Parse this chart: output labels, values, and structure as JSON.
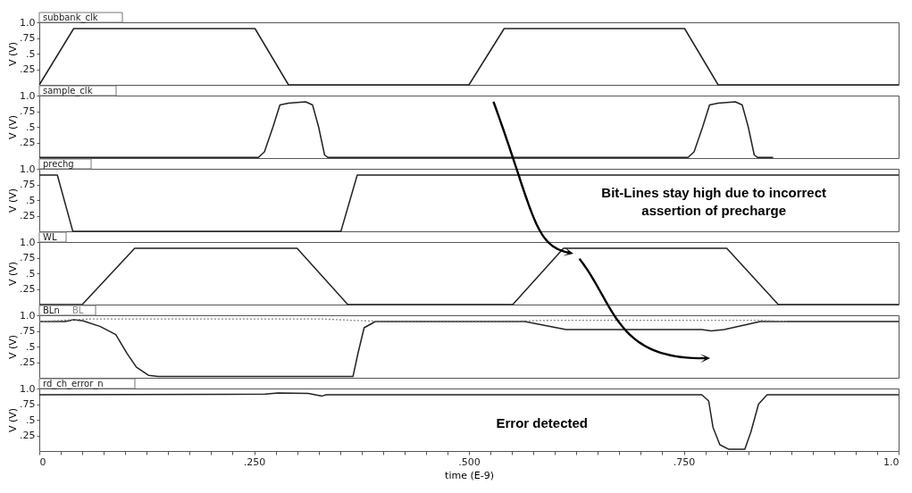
{
  "chart_data": [
    {
      "type": "line",
      "ylabel": "V (V)",
      "xlim": [
        0,
        1
      ],
      "ylim": [
        0,
        1
      ],
      "yticks": [
        {
          "value": 0.25,
          "label": ".25"
        },
        {
          "value": 0.5,
          "label": ".5"
        },
        {
          "value": 0.75,
          "label": ".75"
        },
        {
          "value": 1,
          "label": "1.0"
        }
      ],
      "tick_labels": "y",
      "series": [
        {
          "name": "subbank_clk",
          "color": "#222222",
          "x": [
            0,
            0.04,
            0.251,
            0.29,
            0.5,
            0.541,
            0.751,
            0.79,
            1.0
          ],
          "values": [
            0,
            0.9,
            0.9,
            0,
            0,
            0.9,
            0.9,
            0,
            0
          ]
        }
      ]
    },
    {
      "type": "line",
      "ylabel": "V (V)",
      "xlim": [
        0,
        1
      ],
      "ylim": [
        0,
        1
      ],
      "yticks": [
        {
          "value": 0.25,
          "label": ".25"
        },
        {
          "value": 0.5,
          "label": ".5"
        },
        {
          "value": 0.75,
          "label": ".75"
        },
        {
          "value": 1,
          "label": "1.0"
        }
      ],
      "tick_labels": "y",
      "series": [
        {
          "name": "sample_clk",
          "color": "#222222",
          "x": [
            0,
            0.255,
            0.262,
            0.272,
            0.28,
            0.29,
            0.31,
            0.318,
            0.325,
            0.332,
            0.336,
            0.755,
            0.762,
            0.772,
            0.78,
            0.79,
            0.81,
            0.818,
            0.825,
            0.832,
            0.836,
            0.854
          ],
          "values": [
            0.01,
            0.01,
            0.1,
            0.5,
            0.85,
            0.88,
            0.9,
            0.85,
            0.5,
            0.05,
            0.01,
            0.01,
            0.1,
            0.5,
            0.85,
            0.88,
            0.9,
            0.85,
            0.5,
            0.05,
            0.01,
            0.01
          ]
        }
      ]
    },
    {
      "type": "line",
      "ylabel": "V (V)",
      "xlim": [
        0,
        1
      ],
      "ylim": [
        0,
        1
      ],
      "yticks": [
        {
          "value": 0.25,
          "label": ".25"
        },
        {
          "value": 0.5,
          "label": ".5"
        },
        {
          "value": 0.75,
          "label": ".75"
        },
        {
          "value": 1,
          "label": "1.0"
        }
      ],
      "tick_labels": "y",
      "annotations": [
        "Bit-Lines stay high due to incorrect assertion of precharge"
      ],
      "series": [
        {
          "name": "prechg",
          "color": "#222222",
          "x": [
            0,
            0.021,
            0.039,
            0.351,
            0.37,
            1.0
          ],
          "values": [
            0.9,
            0.9,
            0,
            0,
            0.9,
            0.9
          ]
        }
      ]
    },
    {
      "type": "line",
      "ylabel": "V (V)",
      "xlim": [
        0,
        1
      ],
      "ylim": [
        0,
        1
      ],
      "yticks": [
        {
          "value": 0.25,
          "label": ".25"
        },
        {
          "value": 0.5,
          "label": ".5"
        },
        {
          "value": 0.75,
          "label": ".75"
        },
        {
          "value": 1,
          "label": "1.0"
        }
      ],
      "tick_labels": "y",
      "series": [
        {
          "name": "WL",
          "color": "#222222",
          "x": [
            0,
            0.05,
            0.111,
            0.3,
            0.359,
            0.551,
            0.61,
            0.8,
            0.86,
            1.0
          ],
          "values": [
            0,
            0,
            0.9,
            0.9,
            0,
            0,
            0.9,
            0.9,
            0,
            0
          ]
        }
      ]
    },
    {
      "type": "line",
      "ylabel": "V (V)",
      "xlim": [
        0,
        1
      ],
      "ylim": [
        0,
        1
      ],
      "yticks": [
        {
          "value": 0.25,
          "label": ".25"
        },
        {
          "value": 0.5,
          "label": ".5"
        },
        {
          "value": 0.75,
          "label": ".75"
        },
        {
          "value": 1,
          "label": "1.0"
        }
      ],
      "tick_labels": "y",
      "series": [
        {
          "name": "BLn",
          "color": "#222222",
          "x": [
            0,
            0.03,
            0.04,
            0.051,
            0.071,
            0.089,
            0.102,
            0.113,
            0.127,
            0.138,
            0.365,
            0.371,
            0.378,
            0.391,
            0.565,
            0.613,
            0.771,
            0.782,
            0.797,
            0.839,
            1.0
          ],
          "values": [
            0.9,
            0.9,
            0.93,
            0.91,
            0.82,
            0.69,
            0.39,
            0.17,
            0.04,
            0.02,
            0.02,
            0.4,
            0.8,
            0.9,
            0.9,
            0.77,
            0.77,
            0.75,
            0.77,
            0.9,
            0.9
          ]
        },
        {
          "name": "BL",
          "color": "#888888",
          "line_style": "dotted",
          "x": [
            0,
            0.04,
            0.06,
            0.33,
            0.38,
            0.56,
            0.6,
            0.84,
            0.87
          ],
          "values": [
            0.9,
            0.93,
            0.94,
            0.94,
            0.91,
            0.91,
            0.92,
            0.92,
            0.9
          ]
        }
      ]
    },
    {
      "type": "line",
      "ylabel": "V (V)",
      "xlabel": "time (E-9)",
      "xlim": [
        0,
        1
      ],
      "ylim": [
        0,
        1
      ],
      "yticks": [
        {
          "value": 0.25,
          "label": ".25"
        },
        {
          "value": 0.5,
          "label": ".5"
        },
        {
          "value": 0.75,
          "label": ".75"
        },
        {
          "value": 1,
          "label": "1.0"
        }
      ],
      "xticks": [
        0,
        {
          "value": 0.025,
          "label": null
        },
        {
          "value": 0.05,
          "label": null
        },
        {
          "value": 0.075,
          "label": null
        },
        {
          "value": 0.1,
          "label": null
        },
        {
          "value": 0.125,
          "label": null
        },
        {
          "value": 0.15,
          "label": null
        },
        {
          "value": 0.175,
          "label": null
        },
        {
          "value": 0.2,
          "label": null
        },
        {
          "value": 0.225,
          "label": null
        },
        {
          "value": 0.25,
          "label": ".250"
        },
        {
          "value": 0.275,
          "label": null
        },
        {
          "value": 0.3,
          "label": null
        },
        {
          "value": 0.325,
          "label": null
        },
        {
          "value": 0.35,
          "label": null
        },
        {
          "value": 0.375,
          "label": null
        },
        {
          "value": 0.4,
          "label": null
        },
        {
          "value": 0.425,
          "label": null
        },
        {
          "value": 0.45,
          "label": null
        },
        {
          "value": 0.475,
          "label": null
        },
        {
          "value": 0.5,
          "label": ".500"
        },
        {
          "value": 0.525,
          "label": null
        },
        {
          "value": 0.55,
          "label": null
        },
        {
          "value": 0.575,
          "label": null
        },
        {
          "value": 0.6,
          "label": null
        },
        {
          "value": 0.625,
          "label": null
        },
        {
          "value": 0.65,
          "label": null
        },
        {
          "value": 0.675,
          "label": null
        },
        {
          "value": 0.7,
          "label": null
        },
        {
          "value": 0.725,
          "label": null
        },
        {
          "value": 0.75,
          "label": ".750"
        },
        {
          "value": 0.775,
          "label": null
        },
        {
          "value": 0.8,
          "label": null
        },
        {
          "value": 0.825,
          "label": null
        },
        {
          "value": 0.85,
          "label": null
        },
        {
          "value": 0.875,
          "label": null
        },
        {
          "value": 0.9,
          "label": null
        },
        {
          "value": 0.925,
          "label": null
        },
        {
          "value": 0.95,
          "label": null
        },
        {
          "value": 0.975,
          "label": null
        },
        {
          "value": 1,
          "label": "1.0"
        }
      ],
      "annotations": [
        "Error detected"
      ],
      "series": [
        {
          "name": "rd_ch_error_n",
          "color": "#222222",
          "x": [
            0,
            0.263,
            0.278,
            0.313,
            0.329,
            0.334,
            0.771,
            0.779,
            0.784,
            0.792,
            0.802,
            0.821,
            0.828,
            0.837,
            0.847,
            1.0
          ],
          "values": [
            0.9,
            0.91,
            0.93,
            0.92,
            0.88,
            0.9,
            0.9,
            0.8,
            0.38,
            0.1,
            0.03,
            0.03,
            0.3,
            0.75,
            0.9,
            0.9
          ]
        }
      ]
    }
  ]
}
